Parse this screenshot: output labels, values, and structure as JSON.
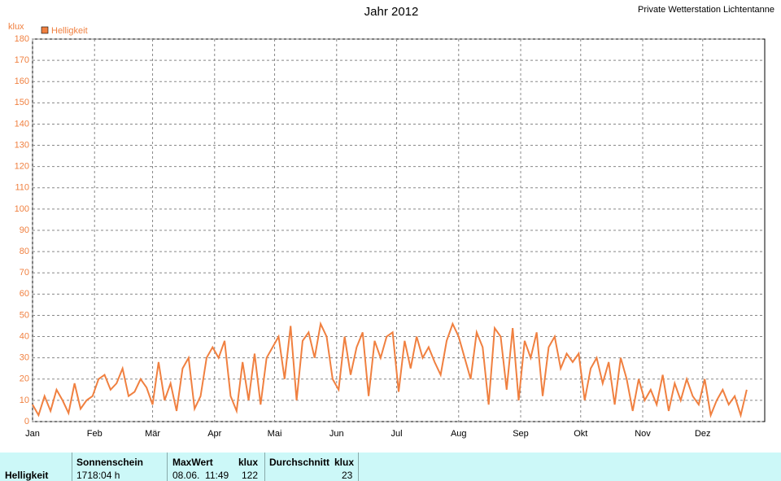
{
  "chart_data": {
    "type": "line",
    "title": "Jahr 2012",
    "subtitle": "Private Wetterstation Lichtentanne",
    "y_label": "klux",
    "x": [
      1,
      4,
      7,
      10,
      13,
      16,
      19,
      22,
      25,
      28,
      31,
      34,
      37,
      40,
      43,
      46,
      49,
      52,
      55,
      58,
      61,
      64,
      67,
      70,
      73,
      76,
      79,
      82,
      85,
      88,
      91,
      94,
      97,
      100,
      103,
      106,
      109,
      112,
      115,
      118,
      121,
      124,
      127,
      130,
      133,
      136,
      139,
      142,
      145,
      148,
      151,
      154,
      157,
      160,
      163,
      166,
      169,
      172,
      175,
      178,
      181,
      184,
      187,
      190,
      193,
      196,
      199,
      202,
      205,
      208,
      211,
      214,
      217,
      220,
      223,
      226,
      229,
      232,
      235,
      238,
      241,
      244,
      247,
      250,
      253,
      256,
      259,
      262,
      265,
      268,
      271,
      274,
      277,
      280,
      283,
      286,
      289,
      292,
      295,
      298,
      301,
      304,
      307,
      310,
      313,
      316,
      319,
      322,
      325,
      328,
      331,
      334,
      337,
      340,
      343,
      346,
      349,
      352,
      355,
      358
    ],
    "series": [
      {
        "name": "Helligkeit",
        "color": "#f08040",
        "values": [
          8,
          3,
          12,
          5,
          15,
          10,
          4,
          18,
          6,
          10,
          12,
          20,
          22,
          15,
          18,
          25,
          12,
          14,
          20,
          16,
          8,
          28,
          10,
          18,
          5,
          25,
          30,
          6,
          12,
          30,
          35,
          30,
          38,
          12,
          5,
          28,
          10,
          32,
          8,
          30,
          35,
          40,
          20,
          45,
          10,
          38,
          42,
          30,
          46,
          40,
          20,
          15,
          40,
          22,
          35,
          42,
          12,
          38,
          30,
          40,
          42,
          14,
          38,
          25,
          40,
          30,
          35,
          28,
          22,
          38,
          46,
          40,
          30,
          20,
          42,
          35,
          8,
          44,
          40,
          15,
          44,
          10,
          38,
          30,
          42,
          12,
          35,
          40,
          25,
          32,
          28,
          32,
          10,
          25,
          30,
          18,
          28,
          8,
          30,
          20,
          5,
          20,
          10,
          15,
          8,
          22,
          5,
          18,
          10,
          20,
          12,
          8,
          20,
          3,
          10,
          15,
          8,
          12,
          3,
          15
        ]
      }
    ],
    "xlim": [
      1,
      367
    ],
    "xticks": [
      {
        "value": 1,
        "label": "Jan"
      },
      {
        "value": 32,
        "label": "Feb"
      },
      {
        "value": 61,
        "label": "Mär"
      },
      {
        "value": 92,
        "label": "Apr"
      },
      {
        "value": 122,
        "label": "Mai"
      },
      {
        "value": 153,
        "label": "Jun"
      },
      {
        "value": 183,
        "label": "Jul"
      },
      {
        "value": 214,
        "label": "Aug"
      },
      {
        "value": 245,
        "label": "Sep"
      },
      {
        "value": 275,
        "label": "Okt"
      },
      {
        "value": 306,
        "label": "Nov"
      },
      {
        "value": 336,
        "label": "Dez"
      }
    ],
    "ylim": [
      0,
      180
    ],
    "yticks": [
      0,
      10,
      20,
      30,
      40,
      50,
      60,
      70,
      80,
      90,
      100,
      110,
      120,
      130,
      140,
      150,
      160,
      170,
      180
    ],
    "grid": true
  },
  "summary": {
    "row_label": "Helligkeit",
    "sunshine": {
      "header": "Sonnenschein",
      "value": "1718:04 h"
    },
    "max": {
      "header": "MaxWert",
      "unit": "klux",
      "time": "08.06.  11:49",
      "value": "122"
    },
    "mean": {
      "header": "Durchschnitt",
      "unit": "klux",
      "value": "23"
    }
  }
}
